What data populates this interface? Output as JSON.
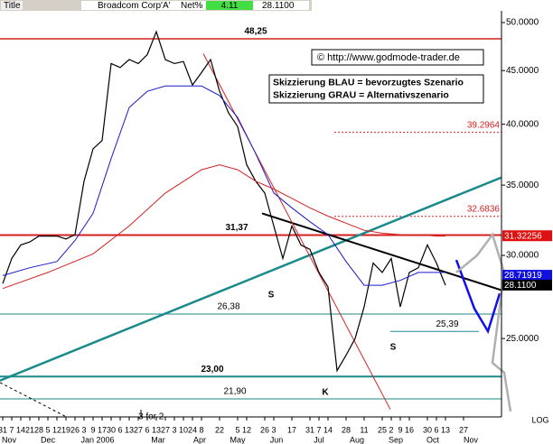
{
  "header": {
    "title_label": "Title",
    "name": "Broadcom Corp'A'",
    "change_label": "Net%",
    "change": 4.11,
    "last": "28.1100"
  },
  "chart_data": {
    "type": "line",
    "log_scale": true,
    "watermark": "© http://www.godmode-trader.de",
    "legend_lines": [
      "Skizzierung BLAU = bevorzugtes Szenario",
      "Skizzierung GRAU = Alternativszenario"
    ],
    "scale_label": "LOG",
    "ylim": [
      21.05,
      51.3
    ],
    "yticks": [
      {
        "value": 50,
        "label": "50.0000"
      },
      {
        "value": 45,
        "label": "45.0000"
      },
      {
        "value": 40,
        "label": "40.0000"
      },
      {
        "value": 35,
        "label": "35.0000"
      },
      {
        "value": 30,
        "label": "30.0000"
      },
      {
        "value": 25,
        "label": "25.0000"
      }
    ],
    "xlim": [
      -0.3,
      55.2
    ],
    "xticks": [
      {
        "value": 0,
        "label": "31"
      },
      {
        "value": 1,
        "label": "7"
      },
      {
        "value": 2,
        "label": "14"
      },
      {
        "value": 3,
        "label": "21"
      },
      {
        "value": 4,
        "label": "28"
      },
      {
        "value": 5,
        "label": "5"
      },
      {
        "value": 6,
        "label": "12"
      },
      {
        "value": 7,
        "label": "19"
      },
      {
        "value": 8,
        "label": "26"
      },
      {
        "value": 9,
        "label": "3"
      },
      {
        "value": 10,
        "label": "9"
      },
      {
        "value": 11,
        "label": "17"
      },
      {
        "value": 12,
        "label": "30"
      },
      {
        "value": 13,
        "label": "6"
      },
      {
        "value": 14,
        "label": "13"
      },
      {
        "value": 15,
        "label": "27"
      },
      {
        "value": 16,
        "label": "6"
      },
      {
        "value": 17,
        "label": "13"
      },
      {
        "value": 18,
        "label": "27"
      },
      {
        "value": 19,
        "label": "3"
      },
      {
        "value": 20,
        "label": "10"
      },
      {
        "value": 21,
        "label": "24"
      },
      {
        "value": 22,
        "label": "8"
      },
      {
        "value": 24,
        "label": "22"
      },
      {
        "value": 26,
        "label": "5"
      },
      {
        "value": 27,
        "label": "12"
      },
      {
        "value": 29,
        "label": "26"
      },
      {
        "value": 30,
        "label": "3"
      },
      {
        "value": 32,
        "label": "17"
      },
      {
        "value": 34,
        "label": "31"
      },
      {
        "value": 35,
        "label": "7"
      },
      {
        "value": 36,
        "label": "14"
      },
      {
        "value": 38,
        "label": "28"
      },
      {
        "value": 40,
        "label": "11"
      },
      {
        "value": 42,
        "label": "25"
      },
      {
        "value": 43,
        "label": "2"
      },
      {
        "value": 44,
        "label": "9"
      },
      {
        "value": 45,
        "label": "16"
      },
      {
        "value": 47,
        "label": "30"
      },
      {
        "value": 48,
        "label": "6"
      },
      {
        "value": 49,
        "label": "13"
      },
      {
        "value": 51,
        "label": "27"
      }
    ],
    "month_labels": [
      {
        "value": 0.7,
        "label": "Nov"
      },
      {
        "value": 5,
        "label": "Dec"
      },
      {
        "value": 10.5,
        "label": "Jan 2006"
      },
      {
        "value": 17.2,
        "label": "Mar"
      },
      {
        "value": 21.8,
        "label": "Apr"
      },
      {
        "value": 26,
        "label": "May"
      },
      {
        "value": 30.3,
        "label": "Jun"
      },
      {
        "value": 35,
        "label": "Jul"
      },
      {
        "value": 39.2,
        "label": "Aug"
      },
      {
        "value": 43.5,
        "label": "Sep"
      },
      {
        "value": 47.6,
        "label": "Oct"
      },
      {
        "value": 51.8,
        "label": "Nov"
      }
    ],
    "series": [
      {
        "color": "#000000",
        "width": 1.2,
        "x": [
          0,
          1,
          2,
          3,
          4,
          5,
          6,
          7,
          8,
          9,
          10,
          11,
          12,
          13,
          14,
          15,
          16,
          17,
          18,
          19,
          20,
          21,
          22,
          23,
          24,
          25,
          26,
          27,
          28,
          29,
          30,
          31,
          32,
          33,
          34,
          35,
          36,
          37,
          38,
          39,
          40,
          41,
          42,
          43,
          44,
          45,
          46,
          47,
          48,
          49
        ],
        "values": [
          28.2,
          29.8,
          30.7,
          30.9,
          31.3,
          31.3,
          31.3,
          31.1,
          31.4,
          35.3,
          37.9,
          38.6,
          45.7,
          45.3,
          46.1,
          45.7,
          46.6,
          49.0,
          46.1,
          45.7,
          45.9,
          43.6,
          44.8,
          46.1,
          43.0,
          41.0,
          39.8,
          36.6,
          35.3,
          34.4,
          32.0,
          29.8,
          32.0,
          30.7,
          30.4,
          28.9,
          28.0,
          23.3,
          24.1,
          25.0,
          26.8,
          29.5,
          28.9,
          29.8,
          26.8,
          28.9,
          29.2,
          30.7,
          29.5,
          28.1
        ]
      },
      {
        "color": "#1a1acc",
        "width": 1,
        "x": [
          0,
          3,
          6,
          8,
          10,
          12,
          14,
          16,
          18,
          20,
          22,
          24,
          26,
          28,
          30,
          32,
          34,
          36,
          38,
          40,
          42,
          44,
          46,
          48,
          49
        ],
        "values": [
          28.7,
          29.2,
          29.6,
          31.0,
          32.9,
          37.1,
          41.5,
          43.0,
          43.5,
          43.5,
          43.5,
          42.6,
          40.6,
          37.5,
          34.4,
          33.3,
          32.3,
          31.4,
          29.6,
          28.1,
          28.1,
          28.4,
          28.9,
          28.9,
          28.9
        ]
      },
      {
        "color": "#d42020",
        "width": 1,
        "x": [
          0,
          5,
          10,
          14,
          18,
          22,
          24,
          26,
          28,
          30,
          32,
          34,
          36,
          38,
          40,
          42,
          44,
          46,
          48,
          49
        ],
        "values": [
          27.9,
          28.9,
          30.1,
          32.0,
          34.4,
          36.2,
          36.6,
          36.2,
          35.3,
          34.7,
          34.0,
          33.3,
          32.7,
          32.2,
          31.7,
          31.5,
          31.4,
          31.4,
          31.3,
          31.3
        ]
      }
    ],
    "levels": [
      {
        "value": 48.25,
        "label": "48,25",
        "color": "#d42020",
        "width": 1.5,
        "x": [
          -0.3,
          55.2
        ]
      },
      {
        "value": 31.37,
        "label": "31,37",
        "color": "#d42020",
        "width": 2,
        "x": [
          -0.3,
          55.2
        ]
      },
      {
        "value": 26.38,
        "label": "26,38",
        "color": "#1a8a8a",
        "width": 1,
        "x": [
          -0.3,
          55.2
        ]
      },
      {
        "value": 25.39,
        "label": "25,39",
        "color": "#1a8a8a",
        "width": 1,
        "x": [
          42.9,
          52.7
        ]
      },
      {
        "value": 23.0,
        "label": "23,00",
        "color": "#1a8a8a",
        "width": 2,
        "x": [
          -0.3,
          55.2
        ]
      },
      {
        "value": 21.9,
        "label": "21,90",
        "color": "#1a8a8a",
        "width": 1,
        "x": [
          -0.3,
          55.2
        ]
      }
    ],
    "target_levels": [
      {
        "value": 39.2964,
        "color": "#d42020",
        "x": [
          36.7,
          55.2
        ]
      },
      {
        "value": 32.6836,
        "color": "#d42020",
        "x": [
          36.7,
          55.2
        ]
      }
    ],
    "trendlines": [
      {
        "color": "#1a8a8a",
        "width": 2.5,
        "dash": false,
        "x": [
          -0.3,
          55.2
        ],
        "values": [
          22.8,
          35.6
        ]
      },
      {
        "color": "#000000",
        "width": 2,
        "dash": false,
        "x": [
          28.7,
          55.2
        ],
        "values": [
          32.9,
          27.8
        ]
      },
      {
        "color": "#d42020",
        "width": 1,
        "dash": false,
        "x": [
          22.2,
          42.9
        ],
        "values": [
          46.7,
          21.4
        ]
      },
      {
        "color": "#000000",
        "width": 1,
        "dash": true,
        "x": [
          -0.3,
          8.7
        ],
        "values": [
          22.7,
          20.7
        ]
      }
    ],
    "scenarios": [
      {
        "color": "#1010ee",
        "width": 2.5,
        "x": [
          50.2,
          52.2,
          53.7,
          55.0
        ],
        "values": [
          29.7,
          26.7,
          25.4,
          27.6
        ]
      },
      {
        "color": "#b0b0b0",
        "width": 2.5,
        "x": [
          50.2,
          52.5,
          54.2,
          55.5,
          54.2,
          55.5,
          56.2
        ],
        "values": [
          28.9,
          30.0,
          31.4,
          28.9,
          23.7,
          23.2,
          21.3
        ]
      }
    ],
    "price_boxes": [
      {
        "value": 31.32256,
        "color": "#e01010"
      },
      {
        "value": 28.71919,
        "color": "#1010e0"
      },
      {
        "value": 28.11,
        "label": "28.1100",
        "color": "#000000"
      }
    ],
    "annotations": [
      "S",
      "S",
      "K"
    ],
    "event": {
      "text": "3 for 2",
      "x": 15.3
    }
  }
}
